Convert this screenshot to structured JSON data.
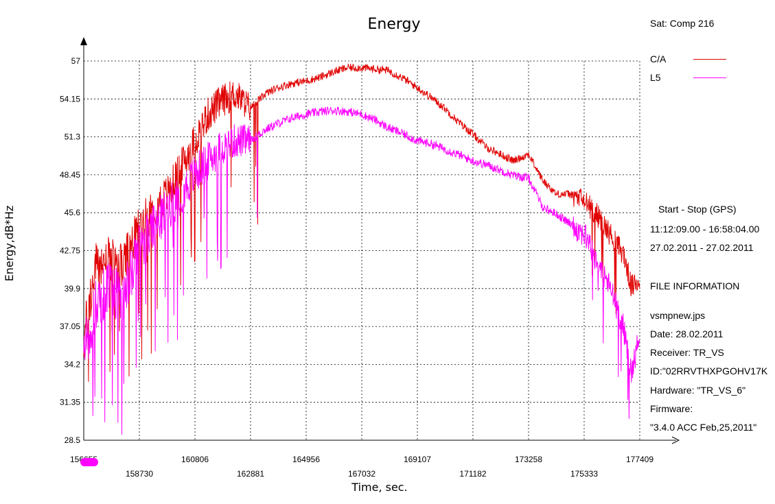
{
  "chart_data": {
    "type": "line",
    "title": "Energy",
    "xlabel": "Time, sec.",
    "ylabel": "Energy,dB*Hz",
    "xlim": [
      156655,
      177409
    ],
    "ylim": [
      28.5,
      57
    ],
    "x_ticks_upper": [
      "156655",
      "160806",
      "164956",
      "169107",
      "173258",
      "177409"
    ],
    "x_ticks_lower": [
      "158730",
      "162881",
      "167032",
      "171182",
      "175333"
    ],
    "x_tick_values": [
      156655,
      158730,
      160806,
      162881,
      164956,
      167032,
      169107,
      171182,
      173258,
      175333,
      177409
    ],
    "y_ticks": [
      "57",
      "54.15",
      "51.3",
      "48.45",
      "45.6",
      "42.75",
      "39.9",
      "37.05",
      "34.2",
      "31.35",
      "28.5"
    ],
    "y_tick_values": [
      57,
      54.15,
      51.3,
      48.45,
      45.6,
      42.75,
      39.9,
      37.05,
      34.2,
      31.35,
      28.5
    ],
    "grid": true,
    "legend_position": "top-right",
    "series": [
      {
        "name": "C/A",
        "color": "#e00000",
        "x": [
          156655,
          157100,
          157600,
          158100,
          158730,
          159300,
          159800,
          160300,
          160806,
          161300,
          161800,
          162300,
          162881,
          163400,
          163900,
          164400,
          164956,
          165500,
          166000,
          166500,
          167032,
          167500,
          168000,
          168500,
          169107,
          169600,
          170100,
          170600,
          171182,
          171700,
          172200,
          172700,
          173258,
          173800,
          174300,
          174800,
          175333,
          175800,
          176300,
          176800,
          177100,
          177409
        ],
        "y": [
          36.0,
          41.5,
          42.0,
          41.5,
          44.5,
          46.0,
          47.0,
          49.0,
          51.0,
          53.0,
          54.0,
          54.5,
          53.5,
          54.5,
          55.0,
          55.3,
          55.5,
          55.8,
          56.2,
          56.5,
          56.5,
          56.4,
          56.3,
          55.8,
          55.0,
          54.3,
          53.5,
          52.5,
          51.5,
          50.5,
          50.0,
          49.5,
          50.0,
          48.0,
          47.0,
          47.0,
          46.5,
          45.5,
          44.0,
          42.5,
          40.0,
          40.5
        ]
      },
      {
        "name": "L5",
        "color": "#ff00ff",
        "x": [
          156655,
          157100,
          157600,
          158100,
          158730,
          159300,
          159800,
          160300,
          160806,
          161300,
          161800,
          162300,
          162881,
          163400,
          163900,
          164400,
          164956,
          165500,
          166000,
          166500,
          167032,
          167500,
          168000,
          168500,
          169107,
          169600,
          170100,
          170600,
          171182,
          171700,
          172200,
          172700,
          173258,
          173800,
          174300,
          174800,
          175333,
          175800,
          176300,
          176800,
          177100,
          177409
        ],
        "y": [
          35.0,
          38.5,
          40.0,
          39.0,
          43.0,
          44.5,
          46.0,
          47.0,
          48.5,
          49.5,
          50.5,
          51.0,
          51.0,
          51.8,
          52.3,
          52.7,
          53.0,
          53.2,
          53.3,
          53.2,
          53.0,
          52.6,
          52.0,
          51.6,
          51.0,
          50.8,
          50.4,
          50.0,
          49.5,
          49.2,
          48.8,
          48.4,
          48.2,
          46.0,
          45.5,
          44.8,
          44.0,
          42.0,
          40.0,
          37.0,
          33.5,
          36.5
        ]
      }
    ]
  },
  "info": {
    "satellite": "Sat: Comp  216",
    "start_stop_label": "Start  -  Stop  (GPS)",
    "time_range": "11:12:09.00 - 16:58:04.00",
    "date_range": "27.02.2011 - 27.02.2011",
    "file_info_header": "FILE INFORMATION",
    "file_name": "vsmpnew.jps",
    "date": "Date: 28.02.2011",
    "receiver": "Receiver: TR_VS",
    "id": "ID:\"02RRVTHXPGOHV17K",
    "hardware": "Hardware: \"TR_VS_6\"",
    "firmware_label": "Firmware:",
    "firmware_value": "\"3.4.0 ACC Feb,25,2011\""
  }
}
